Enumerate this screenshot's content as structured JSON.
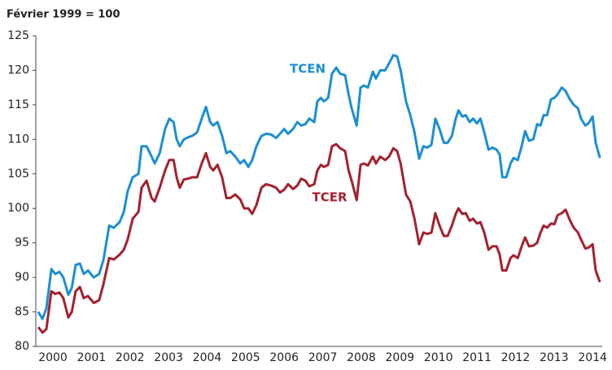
{
  "chart_data": {
    "type": "line",
    "title": "Février 1999 = 100",
    "x": [
      2000.12,
      2000.23,
      2000.33,
      2000.46,
      2000.56,
      2000.67,
      2000.77,
      2000.9,
      2000.99,
      2001.09,
      2001.2,
      2001.3,
      2001.41,
      2001.56,
      2001.7,
      2001.81,
      2001.96,
      2002.08,
      2002.23,
      2002.34,
      2002.44,
      2002.57,
      2002.72,
      2002.8,
      2002.93,
      2003.06,
      2003.14,
      2003.27,
      2003.41,
      2003.52,
      2003.63,
      2003.71,
      2003.79,
      2003.9,
      2004.01,
      2004.11,
      2004.24,
      2004.36,
      2004.47,
      2004.58,
      2004.66,
      2004.77,
      2004.89,
      2005.0,
      2005.1,
      2005.23,
      2005.36,
      2005.46,
      2005.57,
      2005.67,
      2005.78,
      2005.91,
      2006.03,
      2006.16,
      2006.29,
      2006.39,
      2006.5,
      2006.6,
      2006.73,
      2006.84,
      2006.94,
      2007.05,
      2007.15,
      2007.28,
      2007.36,
      2007.45,
      2007.53,
      2007.64,
      2007.74,
      2007.85,
      2007.95,
      2008.08,
      2008.17,
      2008.25,
      2008.38,
      2008.48,
      2008.57,
      2008.67,
      2008.8,
      2008.88,
      2008.99,
      2009.12,
      2009.22,
      2009.33,
      2009.43,
      2009.52,
      2009.66,
      2009.77,
      2009.88,
      2010.0,
      2010.11,
      2010.21,
      2010.32,
      2010.42,
      2010.53,
      2010.64,
      2010.74,
      2010.85,
      2010.95,
      2011.02,
      2011.12,
      2011.21,
      2011.31,
      2011.4,
      2011.5,
      2011.59,
      2011.69,
      2011.8,
      2011.9,
      2012.01,
      2012.09,
      2012.16,
      2012.26,
      2012.37,
      2012.45,
      2012.56,
      2012.66,
      2012.75,
      2012.85,
      2012.96,
      2013.06,
      2013.15,
      2013.23,
      2013.32,
      2013.42,
      2013.51,
      2013.59,
      2013.7,
      2013.8,
      2013.91,
      2014.01,
      2014.12,
      2014.2,
      2014.31,
      2014.39,
      2014.5,
      2014.58,
      2014.69
    ],
    "series": [
      {
        "name": "TCEN",
        "color": "#1b8fd2",
        "values": [
          85,
          84,
          85.5,
          91.2,
          90.5,
          90.8,
          90,
          87.5,
          88.5,
          91.8,
          92,
          90.5,
          91,
          90,
          90.5,
          92.5,
          97.5,
          97.2,
          98,
          99.5,
          102.5,
          104.5,
          105,
          109,
          109,
          107.5,
          106.5,
          108,
          111.5,
          113,
          112.5,
          110,
          109,
          110,
          110.3,
          110.5,
          111,
          113,
          114.7,
          112.5,
          112,
          112.5,
          110.5,
          108,
          108.3,
          107.5,
          106.5,
          107,
          106,
          107,
          109,
          110.5,
          110.8,
          110.7,
          110.2,
          110.8,
          111.5,
          110.8,
          111.5,
          112.5,
          112,
          112.2,
          113,
          112.5,
          115.5,
          116,
          115.5,
          116,
          119.5,
          120.4,
          119.5,
          119.3,
          116.5,
          114.5,
          112,
          117.5,
          117.8,
          117.5,
          119.8,
          118.8,
          120,
          120,
          121,
          122.2,
          122,
          120,
          115.5,
          113.5,
          111,
          107.2,
          109,
          108.8,
          109.2,
          113,
          111.5,
          109.5,
          109.5,
          110.5,
          113,
          114.2,
          113.3,
          113.5,
          112.5,
          113,
          112.3,
          113,
          111,
          108.5,
          108.8,
          108.5,
          107.8,
          104.5,
          104.5,
          106.5,
          107.3,
          107,
          109,
          111.2,
          109.8,
          110,
          112.2,
          112,
          113.5,
          113.5,
          115.8,
          116,
          116.5,
          117.5,
          117,
          115.8,
          115,
          114.5,
          113,
          112,
          112.3,
          113.3,
          109.5,
          107.3
        ]
      },
      {
        "name": "TCER",
        "color": "#a3202e",
        "values": [
          82.8,
          82,
          82.5,
          88,
          87.6,
          87.8,
          87,
          84.2,
          85,
          88,
          88.6,
          87,
          87.3,
          86.3,
          86.7,
          89,
          92.8,
          92.6,
          93.3,
          94,
          95.5,
          98.5,
          99.5,
          103,
          104,
          101.5,
          101,
          103,
          105.5,
          107,
          107,
          104.5,
          103,
          104.2,
          104.3,
          104.5,
          104.5,
          106.5,
          108,
          106,
          105.5,
          106.3,
          104.5,
          101.5,
          101.5,
          102,
          101.3,
          100,
          100,
          99.2,
          100.5,
          103,
          103.5,
          103.3,
          103,
          102.3,
          102.7,
          103.5,
          102.8,
          103.3,
          104.3,
          104,
          103.2,
          103.5,
          105.5,
          106.3,
          106,
          106.3,
          109,
          109.3,
          108.7,
          108.3,
          105.5,
          104,
          101.2,
          106.3,
          106.5,
          106.2,
          107.5,
          106.5,
          107.5,
          107,
          107.5,
          108.7,
          108.3,
          106.5,
          102,
          101,
          98.5,
          94.8,
          96.5,
          96.3,
          96.5,
          99.3,
          97.5,
          96,
          96,
          97.5,
          99.2,
          100,
          99.2,
          99.3,
          98.2,
          98.5,
          97.8,
          98,
          96.5,
          94,
          94.5,
          94.5,
          93.3,
          91,
          91,
          92.8,
          93.2,
          92.8,
          94.5,
          95.8,
          94.5,
          94.6,
          95,
          96.5,
          97.5,
          97.2,
          97.8,
          97.7,
          99,
          99.3,
          99.8,
          98.3,
          97.2,
          96.5,
          95.5,
          94.2,
          94.3,
          94.8,
          91,
          89.3
        ]
      }
    ],
    "xlim": [
      2000.05,
      2014.75
    ],
    "xticks": [
      {
        "value": 2000.5,
        "label": "2000"
      },
      {
        "value": 2001.5,
        "label": "2001"
      },
      {
        "value": 2002.5,
        "label": "2002"
      },
      {
        "value": 2003.5,
        "label": "2003"
      },
      {
        "value": 2004.5,
        "label": "2004"
      },
      {
        "value": 2005.5,
        "label": "2005"
      },
      {
        "value": 2006.5,
        "label": "2006"
      },
      {
        "value": 2007.5,
        "label": "2007"
      },
      {
        "value": 2008.5,
        "label": "2008"
      },
      {
        "value": 2009.5,
        "label": "2009"
      },
      {
        "value": 2010.5,
        "label": "2010"
      },
      {
        "value": 2011.5,
        "label": "2011"
      },
      {
        "value": 2012.5,
        "label": "2012"
      },
      {
        "value": 2013.5,
        "label": "2013"
      },
      {
        "value": 2014.5,
        "label": "2014"
      }
    ],
    "ylim": [
      80,
      125
    ],
    "yticks": [
      80,
      85,
      90,
      95,
      100,
      105,
      110,
      115,
      120,
      125
    ],
    "grid": false
  }
}
